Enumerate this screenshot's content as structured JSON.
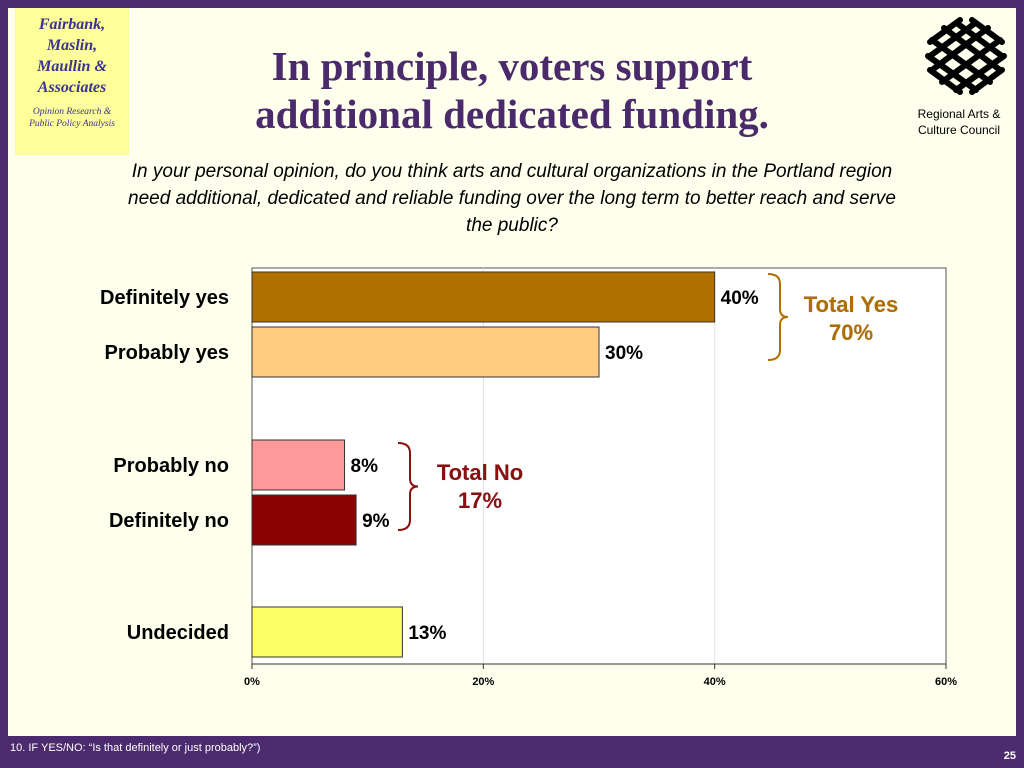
{
  "firm": {
    "lines": [
      "Fairbank,",
      "Maslin,",
      "Maullin &",
      "Associates"
    ],
    "tagline_lines": [
      "Opinion Research &",
      "Public Policy Analysis"
    ]
  },
  "title_lines": [
    "In principle, voters support",
    "additional dedicated funding."
  ],
  "client": {
    "name_lines": [
      "Regional Arts &",
      "Culture Council"
    ],
    "logo_icon": "lattice-star-icon"
  },
  "question": "In your personal opinion, do you think arts and cultural organizations in the Portland region need additional, dedicated and reliable funding over the long term to better reach and serve the public?",
  "chart_data": {
    "type": "bar",
    "orientation": "horizontal",
    "categories": [
      "Definitely yes",
      "Probably yes",
      "Probably no",
      "Definitely no",
      "Undecided"
    ],
    "values": [
      40,
      30,
      8,
      9,
      13
    ],
    "value_labels": [
      "40%",
      "30%",
      "8%",
      "9%",
      "13%"
    ],
    "colors": [
      "#b07000",
      "#ffcc80",
      "#ff9999",
      "#8b0000",
      "#ffff66"
    ],
    "xlim": [
      0,
      60
    ],
    "xticks": [
      0,
      20,
      40,
      60
    ],
    "xtick_labels": [
      "0%",
      "20%",
      "40%",
      "60%"
    ],
    "grid": true,
    "annotations": [
      {
        "lines": [
          "Total Yes",
          "70%"
        ],
        "color": "#b07000",
        "groups": [
          0,
          1
        ]
      },
      {
        "lines": [
          "Total No",
          "17%"
        ],
        "color": "#8b1010",
        "groups": [
          2,
          3
        ]
      }
    ]
  },
  "footnote": "10. IF YES/NO:  “Is that definitely or just probably?”)",
  "page_number": "25"
}
